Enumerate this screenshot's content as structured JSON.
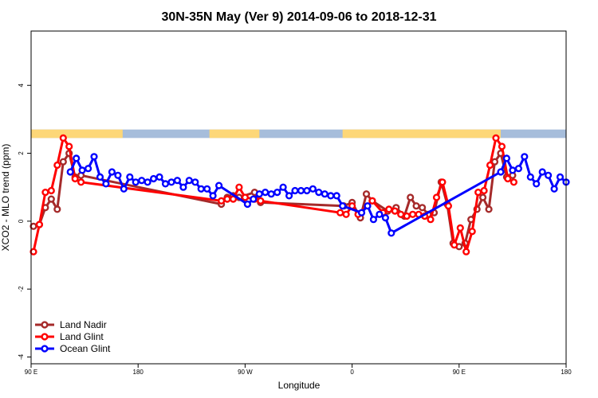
{
  "chart_data": {
    "type": "line",
    "title": "30N-35N May (Ver 9)   2014-09-06 to 2018-12-31",
    "xlabel": "Longitude",
    "ylabel": "XCO2 - MLO trend (ppm)",
    "x_tick_labels": [
      "90 E",
      "180",
      "90 W",
      "0",
      "90 E",
      "180"
    ],
    "y_tick_labels": [
      "-4",
      "-2",
      "0",
      "2",
      "4"
    ],
    "x_domain_note": "continuous longitude axis from 90 E eastward through 180, 90 W, 0, 90 E to 180 (x values given as degrees east of 90 E)",
    "xlim": [
      0,
      450
    ],
    "ylim": [
      -4.2,
      5.6
    ],
    "grid": false,
    "legend_position": "bottom-left",
    "land_ocean_strip": {
      "y_range": [
        2.45,
        2.7
      ],
      "ocean_color": "#a6bddb",
      "land_color": "#fdd778",
      "land_segments": [
        [
          0,
          77
        ],
        [
          150,
          192
        ],
        [
          262,
          395
        ]
      ]
    },
    "series": [
      {
        "name": "Land Nadir",
        "color": "#a52a2a",
        "points": [
          [
            2,
            -0.15
          ],
          [
            7,
            -0.1
          ],
          [
            12,
            0.4
          ],
          [
            17,
            0.65
          ],
          [
            22,
            0.35
          ],
          [
            27,
            1.75
          ],
          [
            32,
            2.0
          ],
          [
            37,
            1.3
          ],
          [
            42,
            1.35
          ],
          [
            160,
            0.5
          ],
          [
            165,
            0.7
          ],
          [
            170,
            0.75
          ],
          [
            175,
            0.7
          ],
          [
            188,
            0.85
          ],
          [
            193,
            0.55
          ],
          [
            263,
            0.45
          ],
          [
            270,
            0.55
          ],
          [
            277,
            0.1
          ],
          [
            282,
            0.8
          ],
          [
            287,
            0.6
          ],
          [
            300,
            0.3
          ],
          [
            307,
            0.4
          ],
          [
            314,
            0.15
          ],
          [
            319,
            0.7
          ],
          [
            324,
            0.45
          ],
          [
            329,
            0.4
          ],
          [
            334,
            0.2
          ],
          [
            339,
            0.25
          ],
          [
            345,
            1.15
          ],
          [
            350,
            0.5
          ],
          [
            355,
            -0.65
          ],
          [
            360,
            -0.75
          ],
          [
            365,
            -0.65
          ],
          [
            370,
            0.05
          ],
          [
            375,
            0.35
          ],
          [
            380,
            0.7
          ],
          [
            385,
            0.35
          ],
          [
            390,
            1.75
          ],
          [
            395,
            2.0
          ],
          [
            400,
            1.3
          ],
          [
            405,
            1.35
          ]
        ]
      },
      {
        "name": "Land Glint",
        "color": "#ff0000",
        "points": [
          [
            2,
            -0.9
          ],
          [
            7,
            -0.1
          ],
          [
            12,
            0.85
          ],
          [
            17,
            0.9
          ],
          [
            22,
            1.65
          ],
          [
            27,
            2.45
          ],
          [
            32,
            2.2
          ],
          [
            37,
            1.25
          ],
          [
            42,
            1.15
          ],
          [
            160,
            0.6
          ],
          [
            165,
            0.65
          ],
          [
            170,
            0.65
          ],
          [
            175,
            1.0
          ],
          [
            180,
            0.7
          ],
          [
            188,
            0.65
          ],
          [
            193,
            0.6
          ],
          [
            260,
            0.25
          ],
          [
            265,
            0.2
          ],
          [
            270,
            0.45
          ],
          [
            275,
            0.2
          ],
          [
            287,
            0.6
          ],
          [
            296,
            0.25
          ],
          [
            301,
            0.35
          ],
          [
            306,
            0.3
          ],
          [
            311,
            0.2
          ],
          [
            316,
            0.15
          ],
          [
            321,
            0.2
          ],
          [
            326,
            0.2
          ],
          [
            331,
            0.15
          ],
          [
            336,
            0.05
          ],
          [
            341,
            0.7
          ],
          [
            346,
            1.15
          ],
          [
            351,
            0.45
          ],
          [
            356,
            -0.7
          ],
          [
            361,
            -0.2
          ],
          [
            366,
            -0.9
          ],
          [
            371,
            -0.3
          ],
          [
            376,
            0.85
          ],
          [
            381,
            0.9
          ],
          [
            386,
            1.65
          ],
          [
            391,
            2.45
          ],
          [
            396,
            2.2
          ],
          [
            401,
            1.25
          ],
          [
            406,
            1.15
          ]
        ]
      },
      {
        "name": "Ocean Glint",
        "color": "#0000ff",
        "points": [
          [
            33,
            1.45
          ],
          [
            38,
            1.85
          ],
          [
            43,
            1.5
          ],
          [
            48,
            1.55
          ],
          [
            53,
            1.9
          ],
          [
            58,
            1.3
          ],
          [
            63,
            1.1
          ],
          [
            68,
            1.45
          ],
          [
            73,
            1.35
          ],
          [
            78,
            0.95
          ],
          [
            83,
            1.3
          ],
          [
            88,
            1.15
          ],
          [
            93,
            1.2
          ],
          [
            98,
            1.15
          ],
          [
            103,
            1.25
          ],
          [
            108,
            1.3
          ],
          [
            113,
            1.1
          ],
          [
            118,
            1.15
          ],
          [
            123,
            1.2
          ],
          [
            128,
            1.0
          ],
          [
            133,
            1.2
          ],
          [
            138,
            1.15
          ],
          [
            143,
            0.95
          ],
          [
            148,
            0.95
          ],
          [
            153,
            0.75
          ],
          [
            158,
            1.05
          ],
          [
            182,
            0.5
          ],
          [
            187,
            0.65
          ],
          [
            192,
            0.8
          ],
          [
            197,
            0.85
          ],
          [
            202,
            0.8
          ],
          [
            207,
            0.85
          ],
          [
            212,
            1.0
          ],
          [
            217,
            0.75
          ],
          [
            222,
            0.9
          ],
          [
            227,
            0.9
          ],
          [
            232,
            0.9
          ],
          [
            237,
            0.95
          ],
          [
            242,
            0.85
          ],
          [
            247,
            0.8
          ],
          [
            252,
            0.75
          ],
          [
            257,
            0.75
          ],
          [
            262,
            0.45
          ],
          [
            278,
            0.25
          ],
          [
            283,
            0.45
          ],
          [
            288,
            0.05
          ],
          [
            293,
            0.2
          ],
          [
            298,
            0.1
          ],
          [
            303,
            -0.35
          ],
          [
            395,
            1.45
          ],
          [
            400,
            1.85
          ],
          [
            405,
            1.5
          ],
          [
            410,
            1.55
          ],
          [
            415,
            1.9
          ],
          [
            420,
            1.3
          ],
          [
            425,
            1.1
          ],
          [
            430,
            1.45
          ],
          [
            435,
            1.35
          ],
          [
            440,
            0.95
          ],
          [
            445,
            1.3
          ],
          [
            450,
            1.15
          ]
        ]
      }
    ]
  }
}
